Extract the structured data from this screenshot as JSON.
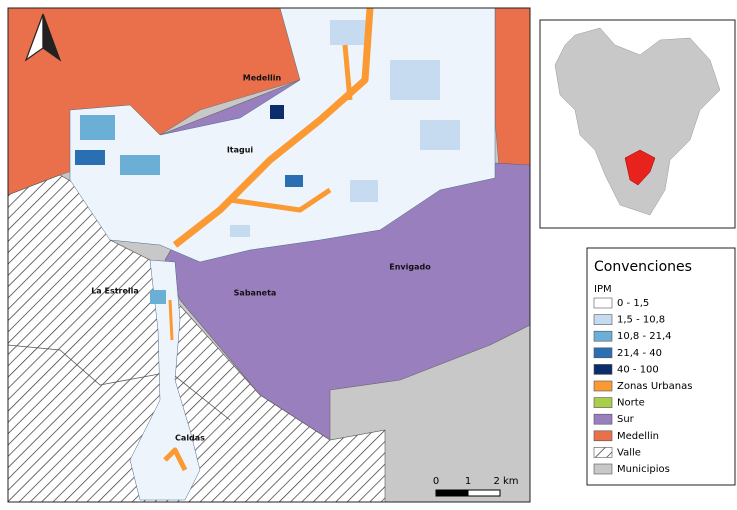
{
  "map": {
    "place_labels": [
      "Medellin",
      "Itagui",
      "Envigado",
      "Sabaneta",
      "La Estrella",
      "Caldas"
    ],
    "scale_bar": [
      "0",
      "1",
      "2 km"
    ],
    "legend": {
      "title": "Convenciones",
      "subtitle": "IPM",
      "items": [
        {
          "label": "0 - 1,5",
          "color": "#ffffff"
        },
        {
          "label": "1,5 - 10,8",
          "color": "#c6dbef"
        },
        {
          "label": "10,8 - 21,4",
          "color": "#6baed6"
        },
        {
          "label": "21,4 - 40",
          "color": "#2b6fb3"
        },
        {
          "label": "40 - 100",
          "color": "#0b2d6b"
        },
        {
          "label": "Zonas Urbanas",
          "color": "#fb9a32"
        },
        {
          "label": "Norte",
          "color": "#a9cf4a"
        },
        {
          "label": "Sur",
          "color": "#9a7fbe"
        },
        {
          "label": "Medellin",
          "color": "#e9704b"
        },
        {
          "label": "Valle",
          "color": "#ffffff",
          "pattern": "hatch"
        },
        {
          "label": "Municipios",
          "color": "#c8c8c8"
        }
      ]
    }
  }
}
